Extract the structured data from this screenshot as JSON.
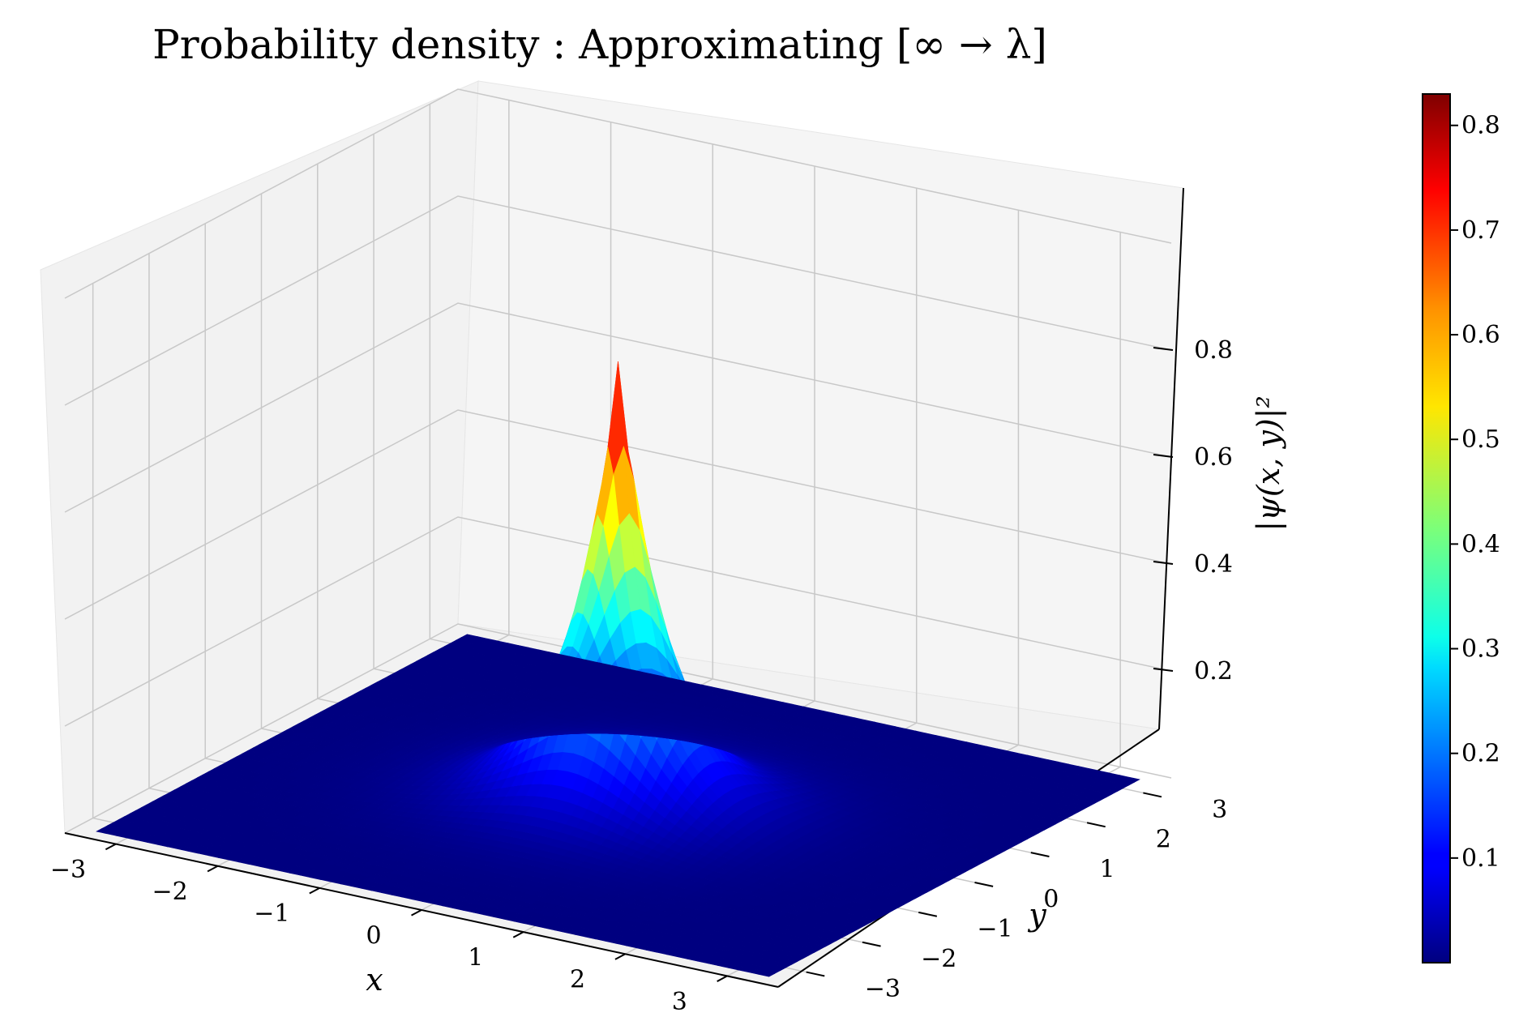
{
  "chart_data": {
    "type": "surface3d",
    "title": "Probability density : Approximating [∞ → λ]",
    "xlabel": "x",
    "ylabel": "y",
    "zlabel": "|ψ(x, y)|²",
    "xlim": [
      -3.5,
      3.5
    ],
    "ylim": [
      -3.5,
      3.5
    ],
    "zlim": [
      0,
      1.0
    ],
    "xticks": [
      "−3",
      "−2",
      "−1",
      "0",
      "1",
      "2",
      "3"
    ],
    "yticks": [
      "−3",
      "−2",
      "−1",
      "0",
      "1",
      "2",
      "3"
    ],
    "zticks": [
      "0.2",
      "0.4",
      "0.6",
      "0.8"
    ],
    "grid": true,
    "colormap": "jet",
    "surface": {
      "x_range": [
        -3.3,
        3.3
      ],
      "y_range": [
        -3.3,
        3.3
      ],
      "peak_value": 0.83,
      "peak_location": [
        0,
        0
      ],
      "base_value": 0.0
    },
    "colorbar": {
      "min": 0.0,
      "max": 0.83,
      "ticks": [
        "0.1",
        "0.2",
        "0.3",
        "0.4",
        "0.5",
        "0.6",
        "0.7",
        "0.8"
      ]
    },
    "colors": {
      "pane": "#f2f2f2",
      "grid": "#c8c8c8",
      "jet_low": "#00007f",
      "jet_high": "#7f0000"
    }
  }
}
